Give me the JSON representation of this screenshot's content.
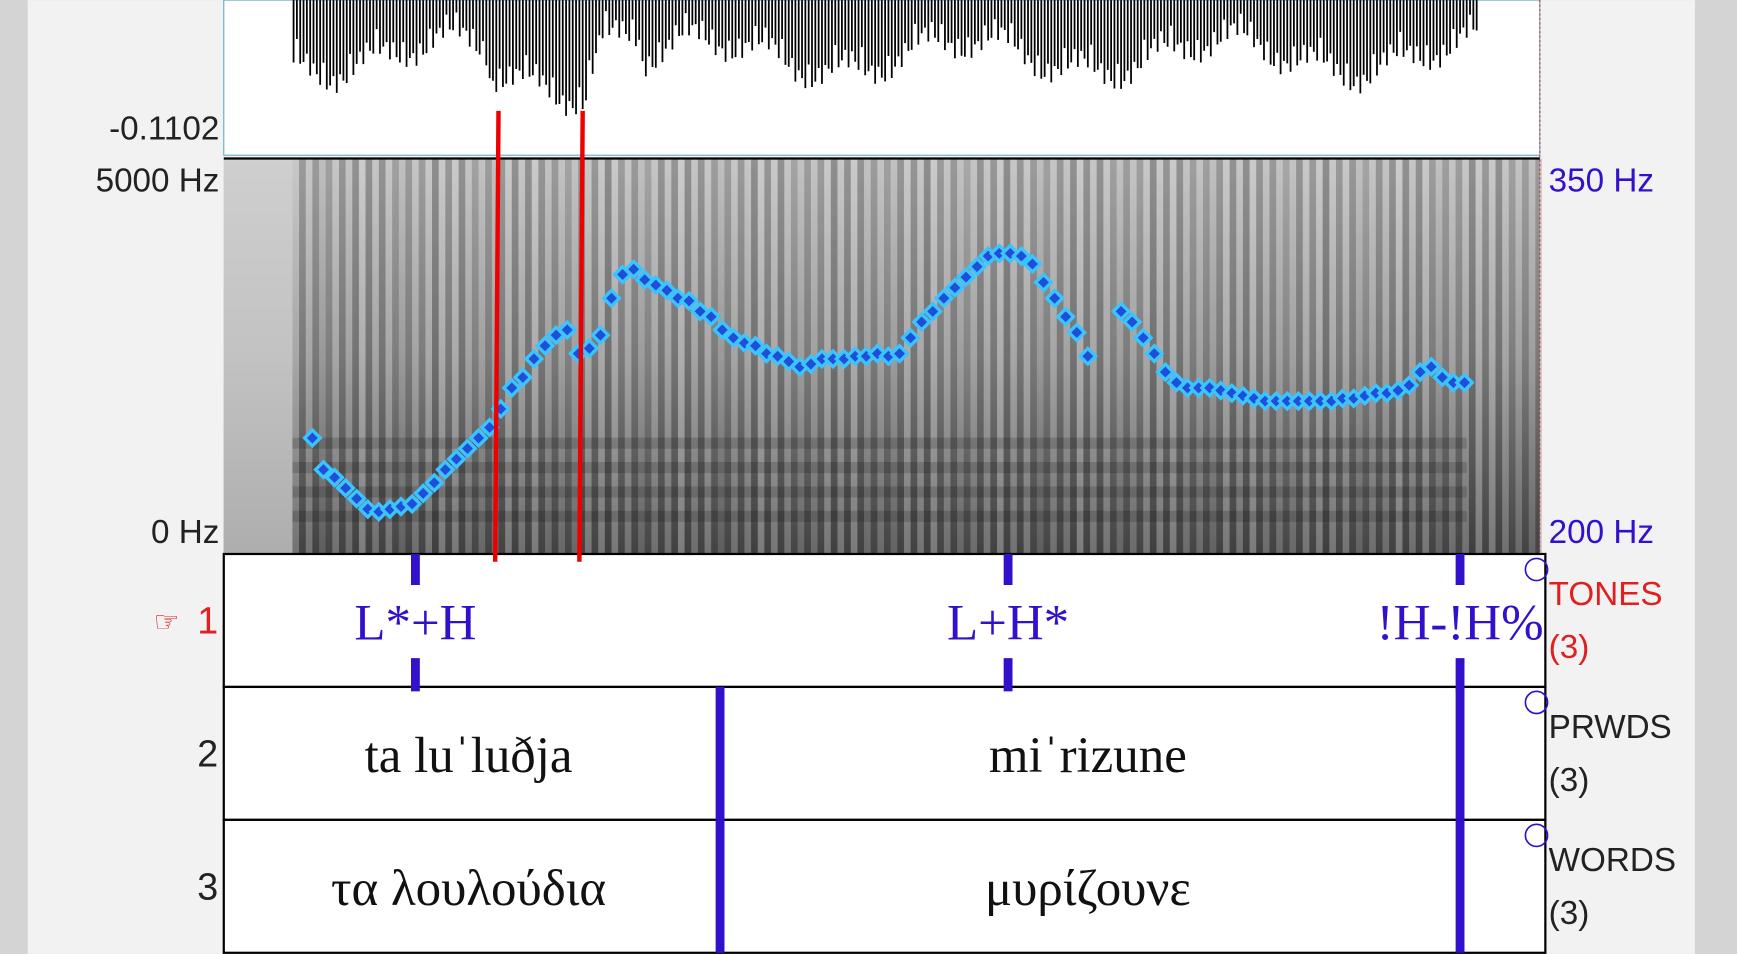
{
  "waveform": {
    "min_label": "-0.1102"
  },
  "spectrogram": {
    "top_label": "5000 Hz",
    "bottom_label": "0 Hz"
  },
  "pitch": {
    "top_label": "350 Hz",
    "bottom_label": "200 Hz",
    "ylim": [
      200,
      350
    ],
    "values": [
      244,
      232,
      229,
      225,
      221,
      217,
      216,
      217,
      218,
      219,
      223,
      227,
      232,
      236,
      240,
      244,
      248,
      255,
      263,
      267,
      274,
      279,
      283,
      285,
      276,
      278,
      283,
      297,
      306,
      308,
      304,
      302,
      300,
      297,
      296,
      292,
      290,
      285,
      282,
      280,
      279,
      276,
      275,
      273,
      271,
      272,
      274,
      274,
      274,
      275,
      275,
      276,
      275,
      276,
      282,
      288,
      292,
      297,
      301,
      305,
      309,
      313,
      314,
      314,
      313,
      310,
      303,
      297,
      290,
      284,
      275,
      null,
      null,
      292,
      288,
      282,
      276,
      269,
      265,
      263,
      263,
      263,
      262,
      261,
      260,
      259,
      258,
      258,
      258,
      258,
      258,
      258,
      258,
      259,
      259,
      260,
      261,
      261,
      262,
      264,
      269,
      271,
      267,
      265,
      265
    ]
  },
  "tiers": [
    {
      "number": "1",
      "pointer": "☞",
      "name": "TONES",
      "count": "(3)",
      "labels": [
        "L*+H",
        "L+H*",
        "!H-!H%"
      ]
    },
    {
      "number": "2",
      "name": "PRWDS",
      "count": "(3)",
      "labels": [
        "ta luˈluðja",
        "miˈrizune"
      ]
    },
    {
      "number": "3",
      "name": "WORDS",
      "count": "(3)",
      "labels": [
        "τα λουλούδια",
        "μυρίζουνε"
      ]
    }
  ]
}
